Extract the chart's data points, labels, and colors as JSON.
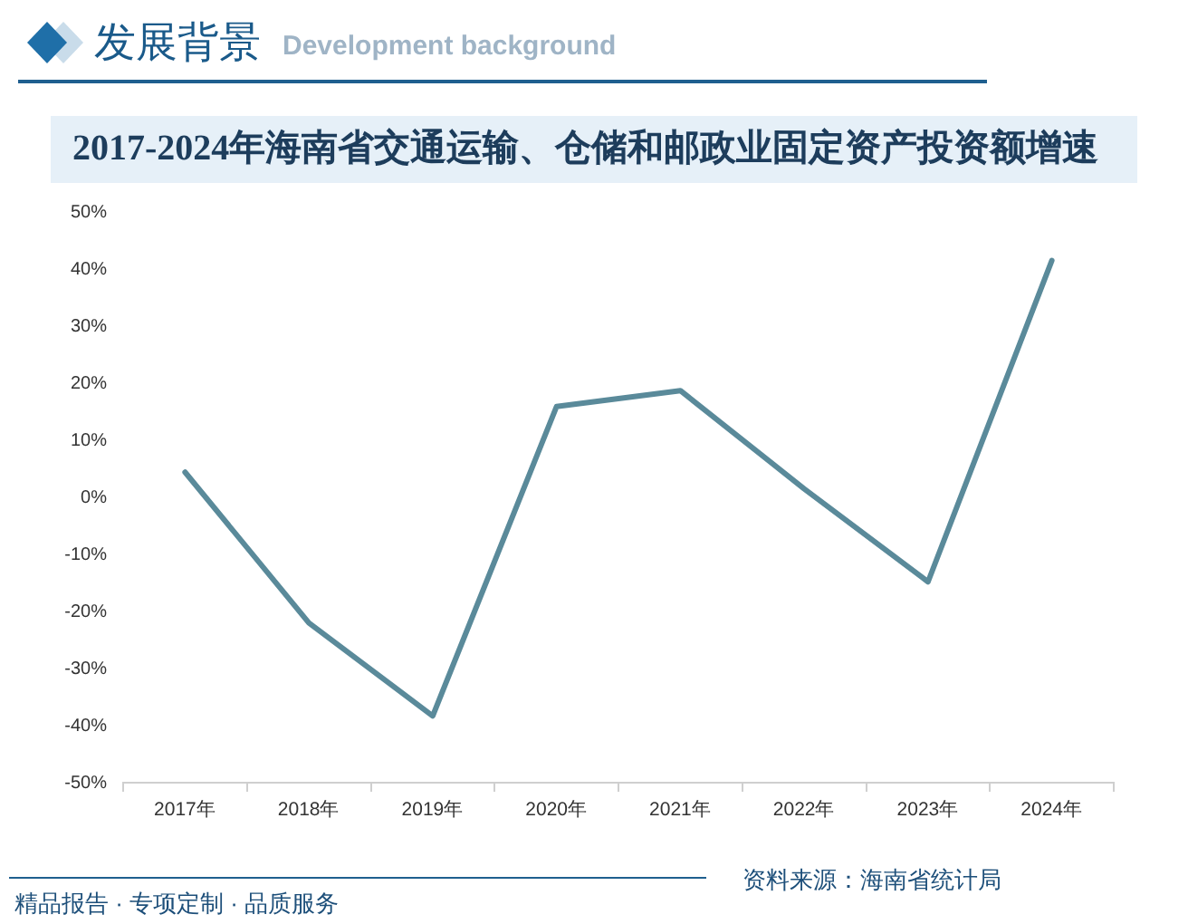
{
  "chart_data": {
    "type": "line",
    "title": "2017-2024年海南省交通运输、仓储和邮政业固定资产投资额增速",
    "annotations": [
      "发展背景",
      "Development background",
      "精品报告 · 专项定制 · 品质服务",
      "资料来源：海南省统计局"
    ],
    "categories": [
      "2017年",
      "2018年",
      "2019年",
      "2020年",
      "2021年",
      "2022年",
      "2023年",
      "2024年"
    ],
    "values": [
      4.4,
      -22,
      -38.3,
      15.9,
      18.7,
      1.5,
      -14.8,
      41.5
    ],
    "color": "#5a8a9a",
    "ylim": [
      -50,
      50
    ],
    "yticks": [
      {
        "value": -50,
        "label": "-50%"
      },
      {
        "value": -40,
        "label": "-40%"
      },
      {
        "value": -30,
        "label": "-30%"
      },
      {
        "value": -20,
        "label": "-20%"
      },
      {
        "value": -10,
        "label": "-10%"
      },
      {
        "value": 0,
        "label": "0%"
      },
      {
        "value": 10,
        "label": "10%"
      },
      {
        "value": 20,
        "label": "20%"
      },
      {
        "value": 30,
        "label": "30%"
      },
      {
        "value": 40,
        "label": "40%"
      },
      {
        "value": 50,
        "label": "50%"
      }
    ],
    "marker": "none",
    "grid": false,
    "legend": false
  }
}
